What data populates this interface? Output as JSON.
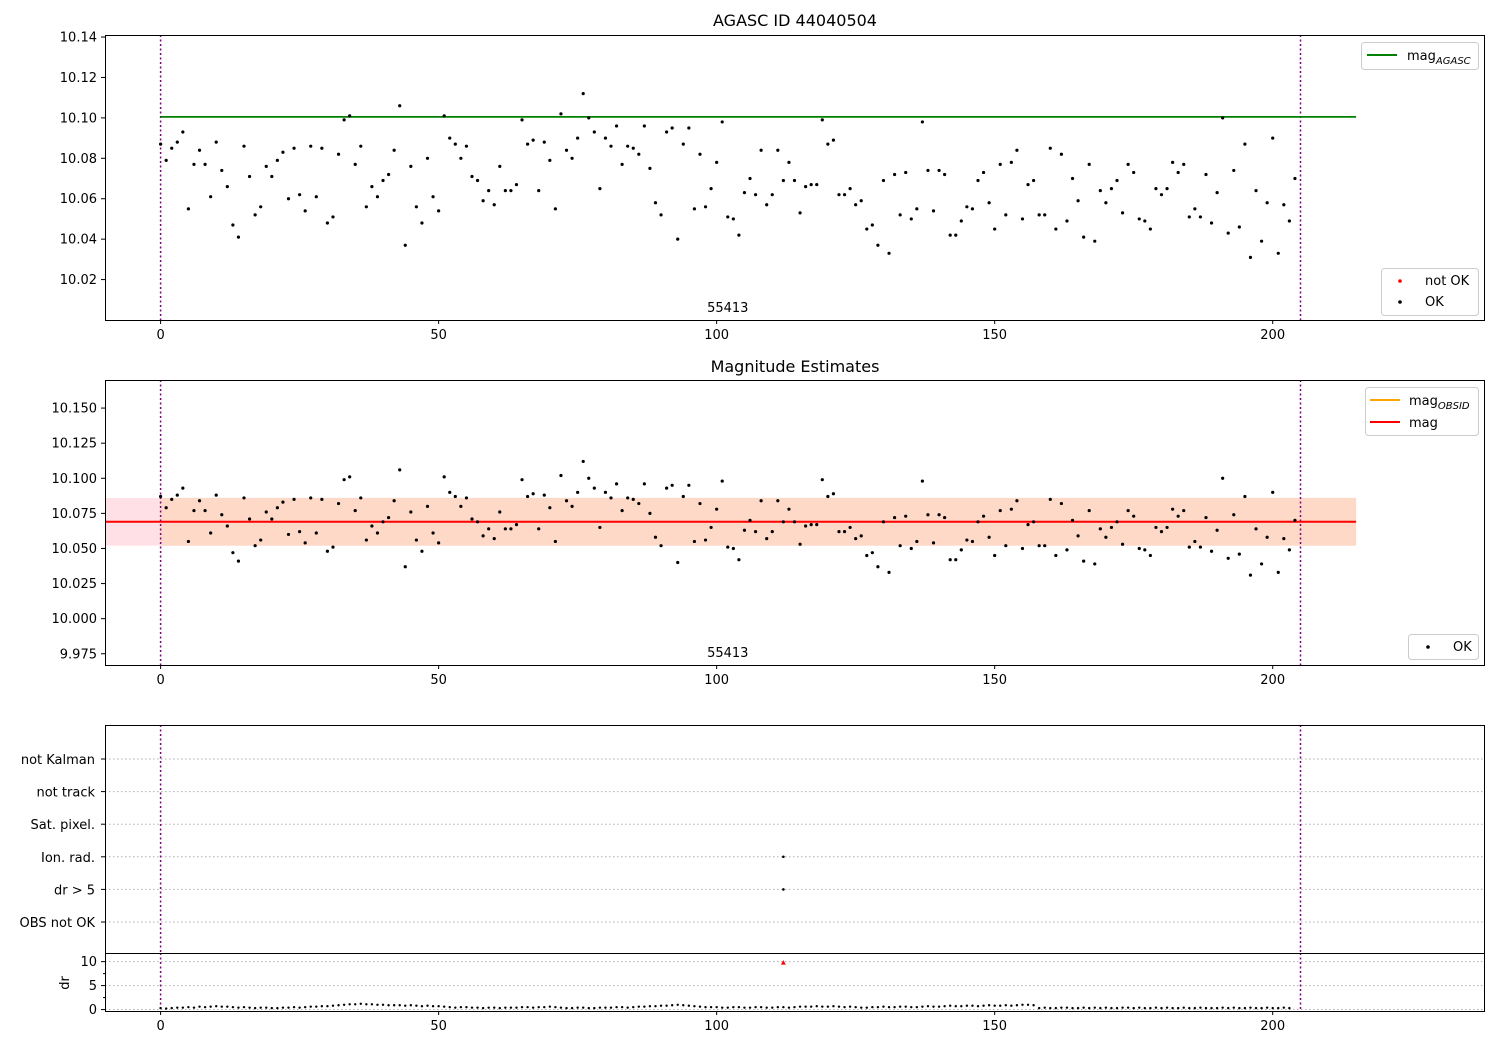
{
  "chart_data": [
    {
      "type": "scatter",
      "title": "AGASC ID 44040504",
      "xlabel": "",
      "ylabel": "",
      "xlim": [
        -10,
        238
      ],
      "ylim": [
        10.0,
        10.141
      ],
      "yticks": [
        "10.02",
        "10.04",
        "10.06",
        "10.08",
        "10.10",
        "10.12",
        "10.14"
      ],
      "xticks": [
        "0",
        "50",
        "100",
        "150",
        "200"
      ],
      "obsid_label": "55413",
      "obsid_label_x": 102,
      "vlines_x": [
        0,
        205
      ],
      "hline": {
        "name": "mag_AGASC",
        "y": 10.1005,
        "x_range": [
          0,
          215
        ],
        "color": "#008000"
      },
      "legend_top": [
        {
          "main": "mag",
          "sub": "AGASC",
          "color": "#008000",
          "kind": "line"
        }
      ],
      "legend_bottom": [
        {
          "label": "not OK",
          "color": "#ff0000",
          "kind": "point"
        },
        {
          "label": "OK",
          "color": "#000000",
          "kind": "point"
        }
      ],
      "series": [
        {
          "name": "OK",
          "color": "#000000",
          "x_start": 0,
          "values": [
            10.087,
            10.079,
            10.085,
            10.088,
            10.093,
            10.055,
            10.077,
            10.084,
            10.077,
            10.061,
            10.088,
            10.074,
            10.066,
            10.047,
            10.041,
            10.086,
            10.071,
            10.052,
            10.056,
            10.076,
            10.071,
            10.079,
            10.083,
            10.06,
            10.085,
            10.062,
            10.054,
            10.086,
            10.061,
            10.085,
            10.048,
            10.051,
            10.082,
            10.099,
            10.101,
            10.077,
            10.086,
            10.056,
            10.066,
            10.061,
            10.069,
            10.072,
            10.084,
            10.106,
            10.037,
            10.076,
            10.056,
            10.048,
            10.08,
            10.061,
            10.054,
            10.101,
            10.09,
            10.087,
            10.08,
            10.086,
            10.071,
            10.069,
            10.059,
            10.064,
            10.057,
            10.076,
            10.064,
            10.064,
            10.067,
            10.099,
            10.087,
            10.089,
            10.064,
            10.088,
            10.079,
            10.055,
            10.102,
            10.084,
            10.08,
            10.09,
            10.112,
            10.1,
            10.093,
            10.065,
            10.09,
            10.086,
            10.096,
            10.077,
            10.086,
            10.085,
            10.082,
            10.096,
            10.075,
            10.058,
            10.052,
            10.093,
            10.095,
            10.04,
            10.087,
            10.095,
            10.055,
            10.082,
            10.056,
            10.065,
            10.078,
            10.098,
            10.051,
            10.05,
            10.042,
            10.063,
            10.07,
            10.062,
            10.084,
            10.057,
            10.062,
            10.084,
            10.069,
            10.078,
            10.069,
            10.053,
            10.066,
            10.067,
            10.067,
            10.099,
            10.087,
            10.089,
            10.062,
            10.062,
            10.065,
            10.057,
            10.059,
            10.045,
            10.047,
            10.037,
            10.069,
            10.033,
            10.072,
            10.052,
            10.073,
            10.05,
            10.055,
            10.098,
            10.074,
            10.054,
            10.074,
            10.072,
            10.042,
            10.042,
            10.049,
            10.056,
            10.055,
            10.069,
            10.073,
            10.058,
            10.045,
            10.077,
            10.052,
            10.078,
            10.084,
            10.05,
            10.067,
            10.069,
            10.052,
            10.052,
            10.085,
            10.045,
            10.082,
            10.049,
            10.07,
            10.059,
            10.041,
            10.077,
            10.039,
            10.064,
            10.058,
            10.065,
            10.069,
            10.053,
            10.077,
            10.073,
            10.05,
            10.049,
            10.045,
            10.065,
            10.062,
            10.065,
            10.078,
            10.073,
            10.077,
            10.051,
            10.055,
            10.051,
            10.072,
            10.048,
            10.063,
            10.1,
            10.043,
            10.074,
            10.046,
            10.087,
            10.031,
            10.064,
            10.039,
            10.058,
            10.09,
            10.033,
            10.057,
            10.049,
            10.07
          ]
        },
        {
          "name": "not OK",
          "color": "#ff0000",
          "points": []
        }
      ]
    },
    {
      "type": "scatter",
      "title": "Magnitude Estimates",
      "xlabel": "",
      "ylabel": "",
      "xlim": [
        -10,
        238
      ],
      "ylim": [
        9.967,
        10.17
      ],
      "yticks": [
        "9.975",
        "10.000",
        "10.025",
        "10.050",
        "10.075",
        "10.100",
        "10.125",
        "10.150"
      ],
      "xticks": [
        "0",
        "50",
        "100",
        "150",
        "200"
      ],
      "obsid_label": "55413",
      "obsid_label_x": 102,
      "vlines_x": [
        0,
        205
      ],
      "hline": {
        "name": "mag",
        "y": 10.069,
        "x_range": [
          -10,
          215
        ],
        "color": "#ff0000"
      },
      "band_outer": {
        "y": [
          10.052,
          10.086
        ],
        "x_range": [
          -10,
          215
        ],
        "color": "#ffe0e6"
      },
      "band_inner": {
        "y": [
          10.052,
          10.086
        ],
        "x_range": [
          0,
          215
        ],
        "color": "#ffd9c8"
      },
      "legend_top": [
        {
          "main": "mag",
          "sub": "OBSID",
          "color": "#ffa500",
          "kind": "line"
        },
        {
          "main": "mag",
          "sub": "",
          "color": "#ff0000",
          "kind": "line"
        }
      ],
      "legend_bottom": [
        {
          "label": "OK",
          "color": "#000000",
          "kind": "point"
        }
      ],
      "series": [
        {
          "name": "OK",
          "color": "#000000",
          "x_start": 0,
          "same_as_panel": 0
        }
      ]
    },
    {
      "type": "scatter",
      "title": "",
      "xlabel": "",
      "ylabel": "",
      "xlim": [
        -10,
        238
      ],
      "xticks": [
        "0",
        "50",
        "100",
        "150",
        "200"
      ],
      "vlines_x": [
        0,
        205
      ],
      "flag_rows": [
        "not Kalman",
        "not track",
        "Sat. pixel.",
        "Ion. rad.",
        "dr > 5",
        "OBS not OK"
      ],
      "flag_points": [
        {
          "row": "Ion. rad.",
          "x": 112
        },
        {
          "row": "dr > 5",
          "x": 112
        }
      ]
    },
    {
      "type": "scatter",
      "title": "",
      "xlabel": "",
      "ylabel": "dr",
      "xlim": [
        -10,
        238
      ],
      "ylim": [
        -0.3,
        11.8
      ],
      "yticks": [
        "0",
        "5",
        "10"
      ],
      "vlines_x": [
        0,
        205
      ],
      "outlier": {
        "x": 112,
        "y": 9.8,
        "color": "#ff0000"
      },
      "series": [
        {
          "name": "dr",
          "color": "#000000",
          "x_start": 0,
          "values": [
            0.3,
            0.2,
            0.3,
            0.4,
            0.4,
            0.5,
            0.4,
            0.6,
            0.5,
            0.6,
            0.7,
            0.6,
            0.6,
            0.5,
            0.4,
            0.5,
            0.4,
            0.3,
            0.4,
            0.4,
            0.3,
            0.3,
            0.4,
            0.4,
            0.5,
            0.4,
            0.5,
            0.6,
            0.6,
            0.7,
            0.7,
            0.8,
            0.9,
            1.0,
            1.1,
            1.1,
            1.2,
            1.1,
            1.1,
            1.0,
            1.0,
            0.9,
            0.9,
            0.9,
            0.8,
            0.9,
            0.8,
            0.7,
            0.8,
            0.7,
            0.7,
            0.6,
            0.5,
            0.4,
            0.5,
            0.5,
            0.4,
            0.4,
            0.3,
            0.4,
            0.4,
            0.3,
            0.4,
            0.4,
            0.4,
            0.5,
            0.5,
            0.4,
            0.5,
            0.5,
            0.6,
            0.5,
            0.4,
            0.3,
            0.3,
            0.4,
            0.4,
            0.3,
            0.3,
            0.4,
            0.4,
            0.4,
            0.5,
            0.5,
            0.4,
            0.5,
            0.6,
            0.6,
            0.7,
            0.7,
            0.8,
            0.8,
            0.9,
            1.0,
            0.9,
            0.8,
            0.7,
            0.6,
            0.5,
            0.5,
            0.5,
            0.4,
            0.4,
            0.5,
            0.5,
            0.4,
            0.4,
            0.5,
            0.5,
            0.4,
            0.4,
            0.5,
            0.5,
            0.4,
            0.5,
            0.6,
            0.6,
            0.6,
            0.7,
            0.6,
            0.6,
            0.7,
            0.6,
            0.5,
            0.6,
            0.5,
            0.4,
            0.4,
            0.5,
            0.5,
            0.6,
            0.5,
            0.5,
            0.6,
            0.6,
            0.5,
            0.5,
            0.6,
            0.7,
            0.6,
            0.6,
            0.7,
            0.8,
            0.7,
            0.7,
            0.8,
            0.8,
            0.7,
            0.8,
            0.9,
            0.8,
            0.8,
            0.9,
            0.8,
            0.9,
            1.0,
            1.0,
            0.9,
            0.3,
            0.4,
            0.3,
            0.3,
            0.4,
            0.4,
            0.3,
            0.3,
            0.4,
            0.3,
            0.4,
            0.3,
            0.4,
            0.3,
            0.3,
            0.4,
            0.4,
            0.3,
            0.4,
            0.3,
            0.3,
            0.4,
            0.3,
            0.4,
            0.3,
            0.3,
            0.4,
            0.3,
            0.3,
            0.4,
            0.3,
            0.3,
            0.3,
            0.4,
            0.3,
            0.4,
            0.3,
            0.3,
            0.4,
            0.3,
            0.3,
            0.4,
            0.3,
            0.3,
            0.4,
            0.3
          ]
        }
      ]
    }
  ]
}
